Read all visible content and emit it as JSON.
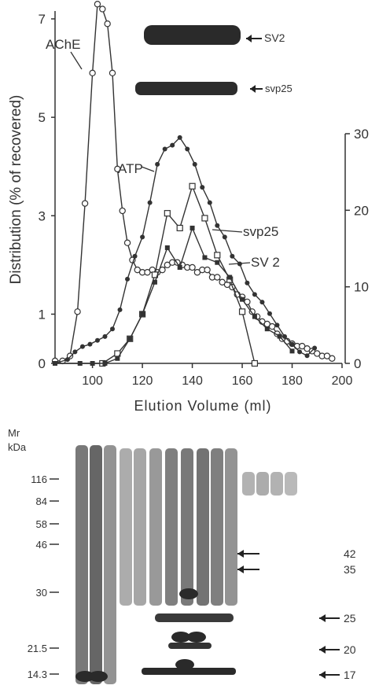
{
  "chart_data": [
    {
      "type": "line",
      "xlabel": "Elution Volume (ml)",
      "ylabel": "Distribution (% of recovered)",
      "x_ticks": [
        "100",
        "120",
        "140",
        "160",
        "180",
        "200"
      ],
      "y_ticks": [
        "0",
        "1",
        "3",
        "5",
        "7"
      ],
      "y2_ticks": [
        "0",
        "10",
        "20",
        "30"
      ],
      "xlim": [
        85,
        200
      ],
      "ylim": [
        0,
        7
      ],
      "y2lim": [
        0,
        30
      ],
      "grid": false,
      "series": [
        {
          "name": "AChE",
          "axis": "left",
          "marker": "open-circle",
          "x": [
            85,
            88,
            91,
            94,
            97,
            100,
            102,
            104,
            106,
            108,
            110,
            112,
            114,
            116,
            118,
            120,
            122,
            124,
            126,
            128,
            130,
            132,
            134,
            136,
            138,
            140,
            142,
            144,
            146,
            148,
            150,
            152,
            154,
            156,
            158,
            160,
            162,
            164,
            166,
            168,
            170,
            172,
            174,
            176,
            178,
            180,
            182,
            184,
            186,
            188,
            190,
            192,
            194,
            196
          ],
          "y": [
            0.05,
            0.05,
            0.15,
            1.05,
            3.25,
            5.9,
            7.3,
            7.2,
            6.9,
            5.9,
            3.95,
            3.1,
            2.45,
            2.1,
            1.9,
            1.85,
            1.85,
            1.9,
            1.85,
            1.9,
            2.0,
            2.05,
            2.05,
            2.0,
            1.95,
            1.95,
            1.85,
            1.9,
            1.9,
            1.75,
            1.75,
            1.65,
            1.6,
            1.55,
            1.4,
            1.35,
            1.25,
            1.05,
            0.95,
            0.85,
            0.8,
            0.75,
            0.6,
            0.5,
            0.45,
            0.4,
            0.35,
            0.35,
            0.3,
            0.25,
            0.2,
            0.15,
            0.15,
            0.1
          ]
        },
        {
          "name": "ATP",
          "axis": "right",
          "marker": "filled-circle",
          "x": [
            85,
            90,
            93,
            96,
            99,
            102,
            105,
            108,
            111,
            114,
            117,
            120,
            123,
            126,
            129,
            132,
            135,
            138,
            141,
            144,
            147,
            150,
            153,
            156,
            159,
            162,
            165,
            168,
            171,
            174,
            177,
            180,
            183,
            186,
            189
          ],
          "y": [
            0,
            0.5,
            1.5,
            2.2,
            2.5,
            3,
            3.5,
            4.5,
            7,
            11,
            14,
            16.5,
            21,
            26,
            28,
            28.5,
            29.5,
            28,
            26,
            23,
            21,
            18,
            16.5,
            14,
            13,
            10.5,
            9,
            8,
            6.5,
            5,
            3.5,
            2.5,
            1.5,
            1,
            2
          ]
        },
        {
          "name": "svp25",
          "axis": "left",
          "marker": "open-square",
          "x": [
            104,
            110,
            115,
            120,
            125,
            130,
            135,
            140,
            145,
            150,
            155,
            160,
            165
          ],
          "y": [
            0,
            0.2,
            0.5,
            1.0,
            1.8,
            3.05,
            2.75,
            3.6,
            2.95,
            2.2,
            1.7,
            1.05,
            0
          ]
        },
        {
          "name": "SV 2",
          "axis": "left",
          "marker": "filled-square",
          "x": [
            85,
            95,
            100,
            105,
            110,
            115,
            120,
            125,
            130,
            135,
            140,
            145,
            150,
            155,
            160,
            165,
            170,
            175,
            180
          ],
          "y": [
            0,
            0,
            0,
            0,
            0.1,
            0.5,
            1.0,
            1.65,
            2.35,
            1.95,
            2.75,
            2.15,
            2.05,
            1.75,
            1.3,
            0.95,
            0.7,
            0.55,
            0.25
          ]
        }
      ]
    },
    {
      "type": "other",
      "description_labels": [
        "SV2",
        "svp25"
      ],
      "bands": [
        {
          "name": "SV2",
          "label": "SV2"
        },
        {
          "name": "svp25",
          "label": "svp25"
        }
      ]
    },
    {
      "type": "other",
      "gel": {
        "mr_label": "Mr",
        "kda_label": "kDa",
        "markers": [
          "116",
          "84",
          "58",
          "46",
          "30",
          "21.5",
          "14.3"
        ],
        "arrows": [
          "42",
          "35",
          "25",
          "20",
          "17"
        ]
      }
    }
  ],
  "inline_labels": {
    "ache": "AChE",
    "atp": "ATP",
    "svp25": "svp25",
    "sv2": "SV 2"
  }
}
